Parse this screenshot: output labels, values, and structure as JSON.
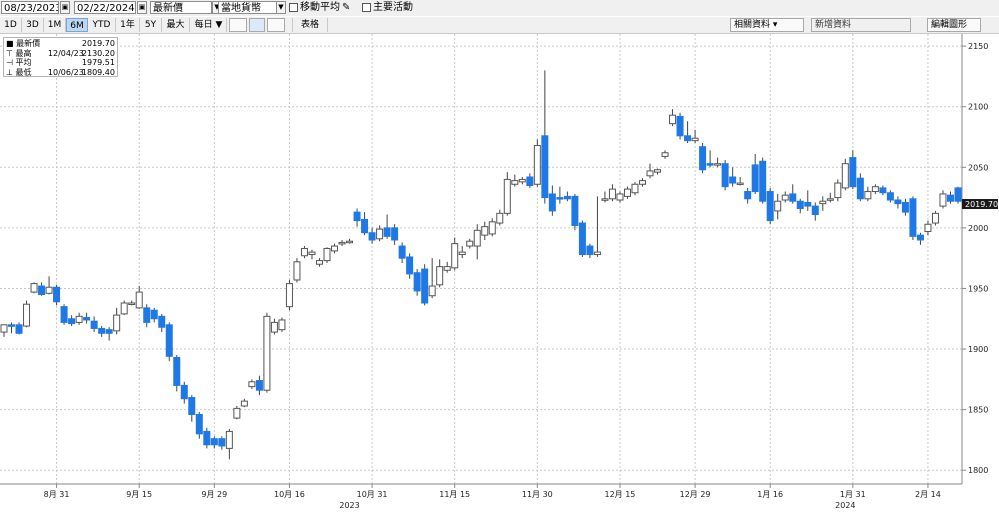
{
  "toolbar": {
    "start_date": "08/23/2023",
    "end_date": "02/22/2024",
    "price_field": "最新價",
    "currency": "當地貨幣",
    "moving_average_label": "移動平均",
    "key_events_label": "主要活動",
    "periods": [
      "1D",
      "3D",
      "1M",
      "6M",
      "YTD",
      "1年",
      "5Y",
      "最大"
    ],
    "active_period": "6M",
    "frequency": "每日 ▼",
    "table_label": "表格",
    "related_data_label": "相關資料",
    "new_data_label": "新增資料",
    "edit_chart_label": "編輯圖形"
  },
  "legend": {
    "rows": [
      {
        "name": "最新價",
        "date": "",
        "value": "2019.70"
      },
      {
        "name": "最高",
        "date": "12/04/23",
        "value": "2130.20"
      },
      {
        "name": "平均",
        "date": "",
        "value": "1979.51"
      },
      {
        "name": "最低",
        "date": "10/06/23",
        "value": "1809.40"
      }
    ]
  },
  "chart_data": {
    "type": "candlestick",
    "ylim": [
      1790,
      2160
    ],
    "yticks": [
      1800,
      1850,
      1900,
      1950,
      2000,
      2050,
      2100,
      2150
    ],
    "y_axis_position": "right",
    "last_price_label": "2019.70",
    "grid": true,
    "colors": {
      "up": "#ffffff",
      "down": "#1e78e6",
      "wick": "#444444"
    },
    "x_ticks": [
      {
        "label": "8月 31",
        "index": 7
      },
      {
        "label": "9月 15",
        "index": 18
      },
      {
        "label": "9月 29",
        "index": 28
      },
      {
        "label": "10月 16",
        "index": 38
      },
      {
        "label": "10月 31",
        "index": 49
      },
      {
        "label": "11月 15",
        "index": 60
      },
      {
        "label": "11月 30",
        "index": 71
      },
      {
        "label": "12月 15",
        "index": 82
      },
      {
        "label": "12月 29",
        "index": 92
      },
      {
        "label": "1月 16",
        "index": 102
      },
      {
        "label": "1月 31",
        "index": 113
      },
      {
        "label": "2月 14",
        "index": 123
      }
    ],
    "year_labels": [
      {
        "label": "2023",
        "index": 46
      },
      {
        "label": "2024",
        "index": 112
      }
    ],
    "candles": [
      {
        "o": 1914,
        "h": 1920,
        "c": 1920,
        "l": 1910
      },
      {
        "o": 1920,
        "h": 1922,
        "c": 1919,
        "l": 1913
      },
      {
        "o": 1920,
        "h": 1922,
        "c": 1913,
        "l": 1912
      },
      {
        "o": 1919,
        "h": 1940,
        "c": 1937,
        "l": 1918
      },
      {
        "o": 1947,
        "h": 1955,
        "c": 1954,
        "l": 1946
      },
      {
        "o": 1952,
        "h": 1955,
        "c": 1945,
        "l": 1944
      },
      {
        "o": 1946,
        "h": 1960,
        "c": 1951,
        "l": 1945
      },
      {
        "o": 1951,
        "h": 1953,
        "c": 1939,
        "l": 1936
      },
      {
        "o": 1935,
        "h": 1937,
        "c": 1922,
        "l": 1920
      },
      {
        "o": 1925,
        "h": 1928,
        "c": 1921,
        "l": 1919
      },
      {
        "o": 1922,
        "h": 1930,
        "c": 1927,
        "l": 1920
      },
      {
        "o": 1926,
        "h": 1930,
        "c": 1924,
        "l": 1921
      },
      {
        "o": 1923,
        "h": 1927,
        "c": 1917,
        "l": 1914
      },
      {
        "o": 1917,
        "h": 1919,
        "c": 1913,
        "l": 1910
      },
      {
        "o": 1916,
        "h": 1918,
        "c": 1913,
        "l": 1907
      },
      {
        "o": 1915,
        "h": 1934,
        "c": 1928,
        "l": 1912
      },
      {
        "o": 1929,
        "h": 1940,
        "c": 1938,
        "l": 1928
      },
      {
        "o": 1937,
        "h": 1940,
        "c": 1938,
        "l": 1936
      },
      {
        "o": 1934,
        "h": 1952,
        "c": 1947,
        "l": 1933
      },
      {
        "o": 1934,
        "h": 1937,
        "c": 1922,
        "l": 1918
      },
      {
        "o": 1932,
        "h": 1934,
        "c": 1925,
        "l": 1922
      },
      {
        "o": 1927,
        "h": 1929,
        "c": 1918,
        "l": 1914
      },
      {
        "o": 1920,
        "h": 1922,
        "c": 1894,
        "l": 1890
      },
      {
        "o": 1893,
        "h": 1895,
        "c": 1870,
        "l": 1865
      },
      {
        "o": 1870,
        "h": 1873,
        "c": 1859,
        "l": 1855
      },
      {
        "o": 1860,
        "h": 1862,
        "c": 1846,
        "l": 1840
      },
      {
        "o": 1846,
        "h": 1848,
        "c": 1830,
        "l": 1826
      },
      {
        "o": 1832,
        "h": 1835,
        "c": 1821,
        "l": 1818
      },
      {
        "o": 1826,
        "h": 1828,
        "c": 1821,
        "l": 1818
      },
      {
        "o": 1826,
        "h": 1828,
        "c": 1820,
        "l": 1817
      },
      {
        "o": 1818,
        "h": 1834,
        "c": 1832,
        "l": 1809
      },
      {
        "o": 1843,
        "h": 1853,
        "c": 1851,
        "l": 1842
      },
      {
        "o": 1853,
        "h": 1859,
        "c": 1857,
        "l": 1852
      },
      {
        "o": 1869,
        "h": 1875,
        "c": 1873,
        "l": 1867
      },
      {
        "o": 1874,
        "h": 1878,
        "c": 1866,
        "l": 1862
      },
      {
        "o": 1866,
        "h": 1930,
        "c": 1927,
        "l": 1864
      },
      {
        "o": 1914,
        "h": 1925,
        "c": 1922,
        "l": 1912
      },
      {
        "o": 1916,
        "h": 1926,
        "c": 1924,
        "l": 1914
      },
      {
        "o": 1935,
        "h": 1957,
        "c": 1954,
        "l": 1932
      },
      {
        "o": 1957,
        "h": 1975,
        "c": 1972,
        "l": 1955
      },
      {
        "o": 1977,
        "h": 1985,
        "c": 1983,
        "l": 1975
      },
      {
        "o": 1978,
        "h": 1982,
        "c": 1980,
        "l": 1974
      },
      {
        "o": 1970,
        "h": 1975,
        "c": 1973,
        "l": 1968
      },
      {
        "o": 1973,
        "h": 1984,
        "c": 1983,
        "l": 1971
      },
      {
        "o": 1981,
        "h": 1987,
        "c": 1985,
        "l": 1979
      },
      {
        "o": 1987,
        "h": 1990,
        "c": 1988,
        "l": 1985
      },
      {
        "o": 1988,
        "h": 1991,
        "c": 1989,
        "l": 1987
      },
      {
        "o": 2013,
        "h": 2016,
        "c": 2006,
        "l": 2001
      },
      {
        "o": 2007,
        "h": 2013,
        "c": 1996,
        "l": 1994
      },
      {
        "o": 1996,
        "h": 2000,
        "c": 1990,
        "l": 1987
      },
      {
        "o": 1991,
        "h": 2002,
        "c": 1999,
        "l": 1989
      },
      {
        "o": 2000,
        "h": 2011,
        "c": 1993,
        "l": 1991
      },
      {
        "o": 2000,
        "h": 2003,
        "c": 1990,
        "l": 1986
      },
      {
        "o": 1985,
        "h": 1988,
        "c": 1975,
        "l": 1971
      },
      {
        "o": 1976,
        "h": 1979,
        "c": 1962,
        "l": 1958
      },
      {
        "o": 1963,
        "h": 1966,
        "c": 1948,
        "l": 1944
      },
      {
        "o": 1966,
        "h": 1970,
        "c": 1938,
        "l": 1936
      },
      {
        "o": 1944,
        "h": 1975,
        "c": 1952,
        "l": 1942
      },
      {
        "o": 1953,
        "h": 1974,
        "c": 1968,
        "l": 1951
      },
      {
        "o": 1965,
        "h": 1972,
        "c": 1968,
        "l": 1963
      },
      {
        "o": 1967,
        "h": 1992,
        "c": 1987,
        "l": 1965
      },
      {
        "o": 1978,
        "h": 1985,
        "c": 1980,
        "l": 1975
      },
      {
        "o": 1985,
        "h": 1991,
        "c": 1989,
        "l": 1983
      },
      {
        "o": 1985,
        "h": 2003,
        "c": 1998,
        "l": 1974
      },
      {
        "o": 1994,
        "h": 2005,
        "c": 2001,
        "l": 1990
      },
      {
        "o": 1995,
        "h": 2008,
        "c": 2005,
        "l": 1993
      },
      {
        "o": 2004,
        "h": 2015,
        "c": 2012,
        "l": 2002
      },
      {
        "o": 2012,
        "h": 2046,
        "c": 2040,
        "l": 2010
      },
      {
        "o": 2036,
        "h": 2044,
        "c": 2039,
        "l": 2034
      },
      {
        "o": 2038,
        "h": 2042,
        "c": 2040,
        "l": 2036
      },
      {
        "o": 2042,
        "h": 2045,
        "c": 2035,
        "l": 2033
      },
      {
        "o": 2036,
        "h": 2073,
        "c": 2068,
        "l": 2034
      },
      {
        "o": 2076,
        "h": 2130,
        "c": 2025,
        "l": 2020
      },
      {
        "o": 2028,
        "h": 2035,
        "c": 2014,
        "l": 2010
      },
      {
        "o": 2025,
        "h": 2034,
        "c": 2024,
        "l": 2020
      },
      {
        "o": 2026,
        "h": 2030,
        "c": 2024,
        "l": 2022
      },
      {
        "o": 2026,
        "h": 2028,
        "c": 2002,
        "l": 1998
      },
      {
        "o": 2004,
        "h": 2006,
        "c": 1978,
        "l": 1976
      },
      {
        "o": 1985,
        "h": 1987,
        "c": 1978,
        "l": 1975
      },
      {
        "o": 1978,
        "h": 2026,
        "c": 1980,
        "l": 1976
      },
      {
        "o": 2023,
        "h": 2030,
        "c": 2024,
        "l": 2021
      },
      {
        "o": 2024,
        "h": 2036,
        "c": 2032,
        "l": 2022
      },
      {
        "o": 2023,
        "h": 2030,
        "c": 2028,
        "l": 2021
      },
      {
        "o": 2026,
        "h": 2034,
        "c": 2032,
        "l": 2024
      },
      {
        "o": 2029,
        "h": 2038,
        "c": 2036,
        "l": 2027
      },
      {
        "o": 2036,
        "h": 2041,
        "c": 2039,
        "l": 2034
      },
      {
        "o": 2043,
        "h": 2053,
        "c": 2047,
        "l": 2041
      },
      {
        "o": 2046,
        "h": 2049,
        "c": 2048,
        "l": 2044
      },
      {
        "o": 2059,
        "h": 2064,
        "c": 2062,
        "l": 2057
      },
      {
        "o": 2086,
        "h": 2098,
        "c": 2093,
        "l": 2084
      },
      {
        "o": 2092,
        "h": 2095,
        "c": 2076,
        "l": 2073
      },
      {
        "o": 2076,
        "h": 2088,
        "c": 2072,
        "l": 2070
      },
      {
        "o": 2072,
        "h": 2081,
        "c": 2074,
        "l": 2070
      },
      {
        "o": 2067,
        "h": 2070,
        "c": 2048,
        "l": 2045
      },
      {
        "o": 2053,
        "h": 2064,
        "c": 2052,
        "l": 2050
      },
      {
        "o": 2052,
        "h": 2058,
        "c": 2053,
        "l": 2050
      },
      {
        "o": 2053,
        "h": 2056,
        "c": 2034,
        "l": 2031
      },
      {
        "o": 2042,
        "h": 2050,
        "c": 2037,
        "l": 2034
      },
      {
        "o": 2036,
        "h": 2042,
        "c": 2037,
        "l": 2035
      },
      {
        "o": 2030,
        "h": 2033,
        "c": 2024,
        "l": 2020
      },
      {
        "o": 2052,
        "h": 2061,
        "c": 2030,
        "l": 2028
      },
      {
        "o": 2055,
        "h": 2058,
        "c": 2022,
        "l": 2020
      },
      {
        "o": 2030,
        "h": 2033,
        "c": 2006,
        "l": 2003
      },
      {
        "o": 2014,
        "h": 2028,
        "c": 2022,
        "l": 2007
      },
      {
        "o": 2023,
        "h": 2030,
        "c": 2027,
        "l": 2021
      },
      {
        "o": 2028,
        "h": 2036,
        "c": 2022,
        "l": 2020
      },
      {
        "o": 2022,
        "h": 2024,
        "c": 2016,
        "l": 2012
      },
      {
        "o": 2021,
        "h": 2031,
        "c": 2018,
        "l": 2014
      },
      {
        "o": 2018,
        "h": 2021,
        "c": 2011,
        "l": 2006
      },
      {
        "o": 2020,
        "h": 2026,
        "c": 2022,
        "l": 2014
      },
      {
        "o": 2023,
        "h": 2029,
        "c": 2024,
        "l": 2021
      },
      {
        "o": 2025,
        "h": 2040,
        "c": 2037,
        "l": 2022
      },
      {
        "o": 2033,
        "h": 2057,
        "c": 2053,
        "l": 2031
      },
      {
        "o": 2058,
        "h": 2064,
        "c": 2034,
        "l": 2032
      },
      {
        "o": 2041,
        "h": 2045,
        "c": 2024,
        "l": 2022
      },
      {
        "o": 2024,
        "h": 2034,
        "c": 2030,
        "l": 2022
      },
      {
        "o": 2030,
        "h": 2036,
        "c": 2034,
        "l": 2028
      },
      {
        "o": 2033,
        "h": 2035,
        "c": 2029,
        "l": 2027
      },
      {
        "o": 2029,
        "h": 2031,
        "c": 2023,
        "l": 2021
      },
      {
        "o": 2023,
        "h": 2026,
        "c": 2020,
        "l": 2016
      },
      {
        "o": 2021,
        "h": 2024,
        "c": 2013,
        "l": 2010
      },
      {
        "o": 2024,
        "h": 2026,
        "c": 1993,
        "l": 1990
      },
      {
        "o": 1994,
        "h": 1996,
        "c": 1990,
        "l": 1986
      },
      {
        "o": 1997,
        "h": 2006,
        "c": 2003,
        "l": 1994
      },
      {
        "o": 2004,
        "h": 2014,
        "c": 2012,
        "l": 2002
      },
      {
        "o": 2018,
        "h": 2031,
        "c": 2028,
        "l": 2016
      },
      {
        "o": 2027,
        "h": 2030,
        "c": 2022,
        "l": 2020
      },
      {
        "o": 2033,
        "h": 2034,
        "c": 2022,
        "l": 2020
      }
    ]
  }
}
